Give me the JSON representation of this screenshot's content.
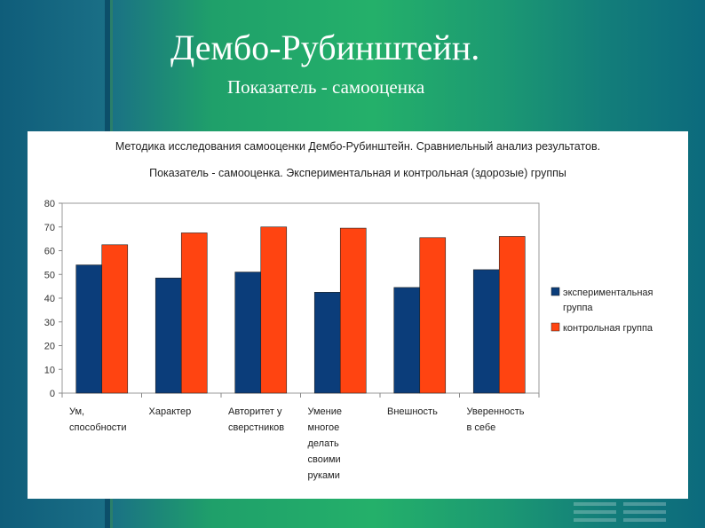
{
  "slide": {
    "title": "Дембо-Рубинштейн.",
    "subtitle": "Показатель - самооценка"
  },
  "chart_data": {
    "type": "bar",
    "title": "Методика исследования самооценки Дембо-Рубинштейн. Сравниельный анализ результатов.",
    "subtitle": "Показатель -  самооценка. Экспериментальная и контрольная (здорозые) группы",
    "categories": [
      [
        "Ум,",
        "способности"
      ],
      [
        "Характер"
      ],
      [
        "Авторитет у",
        "сверстников"
      ],
      [
        "Умение",
        "многое",
        "делать",
        "своими",
        "руками"
      ],
      [
        "Внешность"
      ],
      [
        "Уверенность",
        "в себе"
      ]
    ],
    "series": [
      {
        "name": "экспериментальная группа",
        "legend_lines": [
          "экспериментальная",
          "группа"
        ],
        "color": "#0b3d7a",
        "values": [
          54,
          48.5,
          51,
          42.5,
          44.5,
          52
        ]
      },
      {
        "name": "контрольная группа",
        "legend_lines": [
          "контрольная группа"
        ],
        "color": "#ff4411",
        "values": [
          62.5,
          67.5,
          70,
          69.5,
          65.5,
          66
        ]
      }
    ],
    "ylim": [
      0,
      80
    ],
    "yticks": [
      "0",
      "10",
      "20",
      "30",
      "40",
      "50",
      "60",
      "70",
      "80"
    ],
    "legend_position": "right",
    "grid": false
  }
}
